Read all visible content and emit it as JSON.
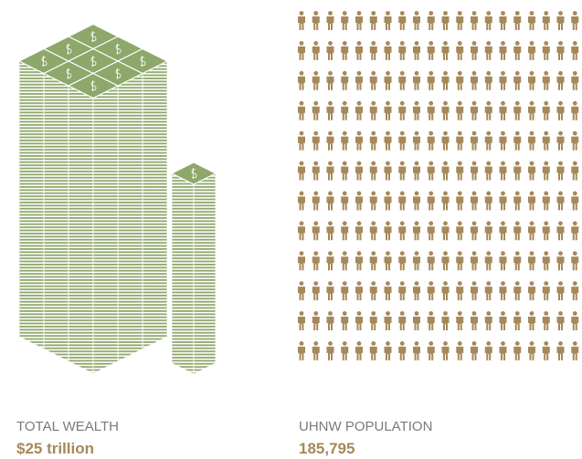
{
  "panels": [
    {
      "label": "TOTAL WEALTH",
      "value": "$25 trillion"
    },
    {
      "label": "UHNW POPULATION",
      "value": "185,795"
    }
  ]
}
